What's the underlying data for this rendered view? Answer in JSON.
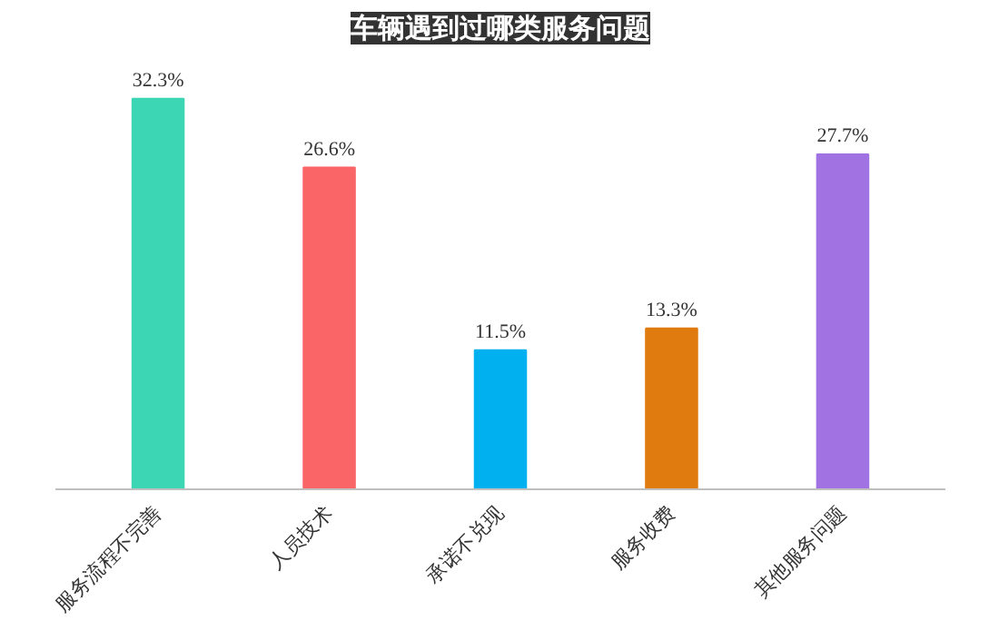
{
  "chart_data": {
    "type": "bar",
    "title": "车辆遇到过哪类服务问题",
    "categories": [
      "服务流程不完善",
      "人员技术",
      "承诺不兑现",
      "服务收费",
      "其他服务问题"
    ],
    "values": [
      32.3,
      26.6,
      11.5,
      13.3,
      27.7
    ],
    "colors": [
      "#3dd6b5",
      "#fa6567",
      "#00b0ef",
      "#e07b10",
      "#a173e2"
    ],
    "value_labels": [
      "32.3%",
      "26.6%",
      "11.5%",
      "13.3%",
      "27.7%"
    ],
    "grid": false
  }
}
